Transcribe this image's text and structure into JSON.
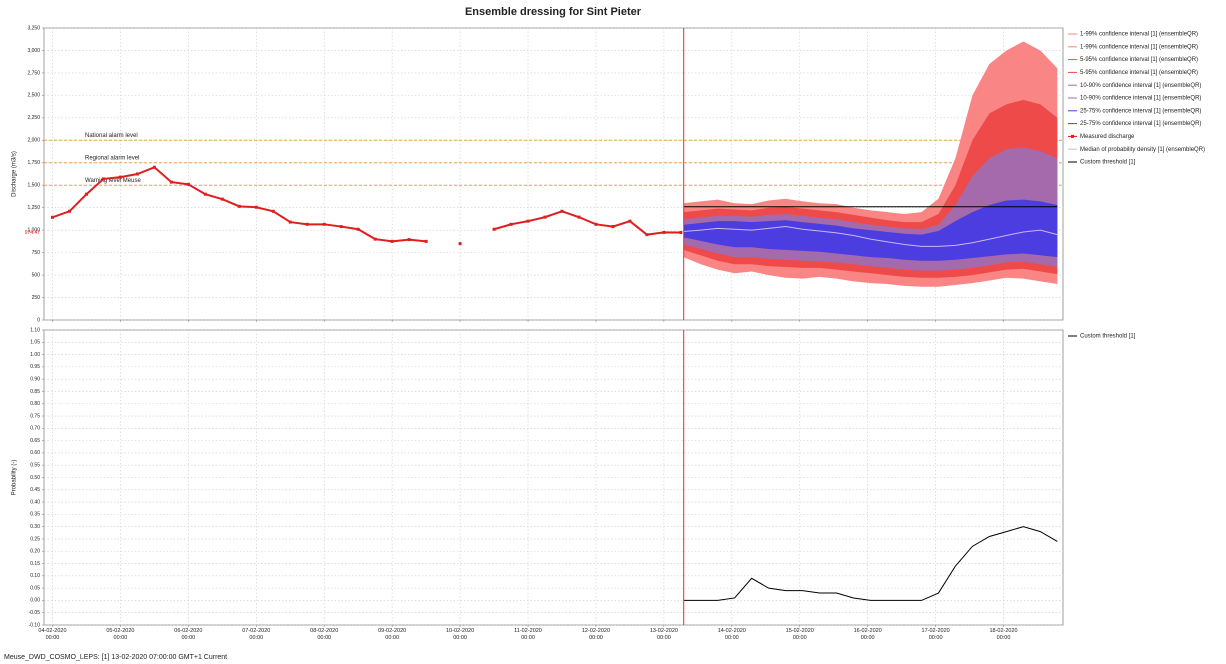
{
  "footer": "Meuse_DWD_COSMO_LEPS: [1] 13-02-2020 07:00:00 GMT+1 Current",
  "chart_data": [
    {
      "type": "line",
      "title": "Ensemble dressing for Sint Pieter",
      "ylabel": "Discharge (m3/s)",
      "xlim": [
        "03-02-2020 21:00",
        "18-02-2020 21:00"
      ],
      "ylim": [
        0,
        3250
      ],
      "yticks": [
        0,
        250,
        500,
        750,
        {
          "value": 1000,
          "label": "1,000"
        },
        {
          "value": 1250,
          "label": "1,250"
        },
        {
          "value": 1500,
          "label": "1,500"
        },
        {
          "value": 1750,
          "label": "1,750"
        },
        {
          "value": 2000,
          "label": "2,000"
        },
        {
          "value": 2250,
          "label": "2,250"
        },
        {
          "value": 2500,
          "label": "2,500"
        },
        {
          "value": 2750,
          "label": "2,750"
        },
        {
          "value": 3000,
          "label": "3,000"
        },
        {
          "value": 3250,
          "label": "3,250"
        }
      ],
      "grid": true,
      "forecast_time": "13-02-2020 07:00",
      "last_value": {
        "value": 974.47,
        "label": "974.47"
      },
      "alarm_color": "#f0a040",
      "thresholds": [
        {
          "label": "National alarm level",
          "value": 2000
        },
        {
          "label": "Regional alarm level",
          "value": 1750
        },
        {
          "label": "Warning level Meuse",
          "value": 1500
        }
      ],
      "x": [
        "13-02-2020 07:00",
        "13-02-2020 13:00",
        "13-02-2020 19:00",
        "14-02-2020 01:00",
        "14-02-2020 07:00",
        "14-02-2020 13:00",
        "14-02-2020 19:00",
        "15-02-2020 01:00",
        "15-02-2020 07:00",
        "15-02-2020 13:00",
        "15-02-2020 19:00",
        "16-02-2020 01:00",
        "16-02-2020 07:00",
        "16-02-2020 13:00",
        "16-02-2020 19:00",
        "17-02-2020 01:00",
        "17-02-2020 07:00",
        "17-02-2020 13:00",
        "17-02-2020 19:00",
        "18-02-2020 01:00",
        "18-02-2020 07:00",
        "18-02-2020 13:00",
        "18-02-2020 19:00"
      ],
      "series": [
        {
          "name": "1-99% confidence interval [1] (ensembleQR)",
          "color": "#f98585",
          "values": [
            700,
            620,
            560,
            520,
            540,
            500,
            470,
            460,
            480,
            460,
            430,
            410,
            400,
            380,
            370,
            370,
            390,
            410,
            440,
            470,
            460,
            430,
            400
          ]
        },
        {
          "name": "1-99% confidence interval [1] (ensembleQR)",
          "color": "#f98585",
          "values": [
            1300,
            1320,
            1340,
            1300,
            1290,
            1330,
            1350,
            1320,
            1300,
            1290,
            1250,
            1220,
            1200,
            1180,
            1200,
            1350,
            1800,
            2500,
            2850,
            3000,
            3100,
            3000,
            2800
          ]
        },
        {
          "name": "5-95% confidence interval [1] (ensembleQR)",
          "color": "#ee4a4a",
          "values": [
            780,
            720,
            660,
            620,
            620,
            600,
            590,
            580,
            580,
            560,
            540,
            520,
            500,
            480,
            470,
            470,
            480,
            500,
            530,
            560,
            570,
            540,
            510
          ]
        },
        {
          "name": "5-95% confidence interval [1] (ensembleQR)",
          "color": "#ee4a4a",
          "values": [
            1200,
            1220,
            1240,
            1230,
            1220,
            1250,
            1260,
            1240,
            1220,
            1200,
            1170,
            1140,
            1110,
            1090,
            1090,
            1180,
            1500,
            2000,
            2300,
            2400,
            2450,
            2400,
            2250
          ]
        },
        {
          "name": "10-90% confidence interval [1] (ensembleQR)",
          "color": "#a46aac",
          "values": [
            840,
            790,
            740,
            700,
            700,
            680,
            670,
            660,
            650,
            640,
            620,
            600,
            580,
            560,
            550,
            550,
            560,
            580,
            610,
            640,
            650,
            620,
            590
          ]
        },
        {
          "name": "10-90% confidence interval [1] (ensembleQR)",
          "color": "#a46aac",
          "values": [
            1120,
            1140,
            1160,
            1160,
            1150,
            1170,
            1180,
            1160,
            1140,
            1120,
            1090,
            1060,
            1040,
            1020,
            1010,
            1060,
            1280,
            1600,
            1800,
            1900,
            1920,
            1880,
            1800
          ]
        },
        {
          "name": "25-75% confidence interval [1] (ensembleQR)",
          "color": "#4b3de0",
          "values": [
            920,
            880,
            840,
            810,
            810,
            790,
            780,
            770,
            760,
            740,
            720,
            700,
            690,
            670,
            660,
            660,
            670,
            690,
            710,
            730,
            740,
            720,
            700
          ]
        },
        {
          "name": "25-75% confidence interval [1] (ensembleQR)",
          "color": "#4b3de0",
          "values": [
            1060,
            1080,
            1100,
            1100,
            1090,
            1100,
            1110,
            1090,
            1070,
            1050,
            1020,
            1000,
            980,
            960,
            950,
            990,
            1100,
            1200,
            1280,
            1330,
            1340,
            1320,
            1280
          ]
        },
        {
          "name": "Measured discharge",
          "color": "#e01e1e",
          "marker": "square",
          "x": [
            "04-02-2020 00:00",
            "04-02-2020 06:00",
            "04-02-2020 12:00",
            "04-02-2020 18:00",
            "05-02-2020 00:00",
            "05-02-2020 06:00",
            "05-02-2020 12:00",
            "05-02-2020 18:00",
            "06-02-2020 00:00",
            "06-02-2020 06:00",
            "06-02-2020 12:00",
            "06-02-2020 18:00",
            "07-02-2020 00:00",
            "07-02-2020 06:00",
            "07-02-2020 12:00",
            "07-02-2020 18:00",
            "08-02-2020 00:00",
            "08-02-2020 06:00",
            "08-02-2020 12:00",
            "08-02-2020 18:00",
            "09-02-2020 00:00",
            "09-02-2020 06:00",
            "09-02-2020 12:00",
            "09-02-2020 18:00",
            "10-02-2020 00:00",
            "10-02-2020 06:00",
            "10-02-2020 12:00",
            "10-02-2020 18:00",
            "11-02-2020 00:00",
            "11-02-2020 06:00",
            "11-02-2020 12:00",
            "11-02-2020 18:00",
            "12-02-2020 00:00",
            "12-02-2020 06:00",
            "12-02-2020 12:00",
            "12-02-2020 18:00",
            "13-02-2020 00:00",
            "13-02-2020 06:00"
          ],
          "values": [
            1143,
            1210,
            1400,
            1570,
            1590,
            1625,
            1700,
            1535,
            1510,
            1400,
            1345,
            1265,
            1255,
            1210,
            1090,
            1065,
            1065,
            1040,
            1010,
            900,
            875,
            895,
            875,
            null,
            850,
            null,
            1010,
            1065,
            1100,
            1145,
            1210,
            1145,
            1065,
            1040,
            1100,
            950,
            975,
            974
          ]
        },
        {
          "name": "Median of probability density [1] (ensembleQR)",
          "color": "#cdb8ee",
          "values": [
            985,
            1000,
            1020,
            1010,
            1000,
            1020,
            1040,
            1010,
            990,
            970,
            940,
            900,
            870,
            840,
            820,
            820,
            830,
            860,
            900,
            940,
            980,
            1000,
            950
          ]
        },
        {
          "name": "Custom threshold [1]",
          "color": "#000000",
          "x": [
            "13-02-2020 07:00",
            "18-02-2020 19:00"
          ],
          "values": [
            1260,
            1260
          ]
        }
      ]
    },
    {
      "type": "line",
      "ylabel": "Probability (-)",
      "xlim": [
        "03-02-2020 21:00",
        "18-02-2020 21:00"
      ],
      "xticks": [
        "04-02-2020 00:00",
        "05-02-2020 00:00",
        "06-02-2020 00:00",
        "07-02-2020 00:00",
        "08-02-2020 00:00",
        "09-02-2020 00:00",
        "10-02-2020 00:00",
        "11-02-2020 00:00",
        "12-02-2020 00:00",
        "13-02-2020 00:00",
        "14-02-2020 00:00",
        "15-02-2020 00:00",
        "16-02-2020 00:00",
        "17-02-2020 00:00",
        "18-02-2020 00:00"
      ],
      "ylim": [
        -0.1,
        1.1
      ],
      "yticks": [
        {
          "value": -0.1,
          "label": "-0.10"
        },
        -0.05,
        {
          "value": 0,
          "label": "0.00"
        },
        0.05,
        {
          "value": 0.1,
          "label": "0.10"
        },
        0.15,
        {
          "value": 0.2,
          "label": "0.20"
        },
        0.25,
        {
          "value": 0.3,
          "label": "0.30"
        },
        0.35,
        {
          "value": 0.4,
          "label": "0.40"
        },
        0.45,
        {
          "value": 0.5,
          "label": "0.50"
        },
        0.55,
        {
          "value": 0.6,
          "label": "0.60"
        },
        0.65,
        {
          "value": 0.7,
          "label": "0.70"
        },
        0.75,
        {
          "value": 0.8,
          "label": "0.80"
        },
        0.85,
        {
          "value": 0.9,
          "label": "0.90"
        },
        0.95,
        {
          "value": 1,
          "label": "1.00"
        },
        1.05,
        {
          "value": 1.1,
          "label": "1.10"
        }
      ],
      "grid": true,
      "forecast_time": "13-02-2020 07:00",
      "x": [
        "13-02-2020 07:00",
        "13-02-2020 13:00",
        "13-02-2020 19:00",
        "14-02-2020 01:00",
        "14-02-2020 07:00",
        "14-02-2020 13:00",
        "14-02-2020 19:00",
        "15-02-2020 01:00",
        "15-02-2020 07:00",
        "15-02-2020 13:00",
        "15-02-2020 19:00",
        "16-02-2020 01:00",
        "16-02-2020 07:00",
        "16-02-2020 13:00",
        "16-02-2020 19:00",
        "17-02-2020 01:00",
        "17-02-2020 07:00",
        "17-02-2020 13:00",
        "17-02-2020 19:00",
        "18-02-2020 01:00",
        "18-02-2020 07:00",
        "18-02-2020 13:00",
        "18-02-2020 19:00"
      ],
      "series": [
        {
          "name": "Custom threshold [1]",
          "color": "#000000",
          "values": [
            0,
            0,
            0,
            0.01,
            0.09,
            0.05,
            0.04,
            0.04,
            0.03,
            0.03,
            0.01,
            0,
            0,
            0,
            0,
            0.03,
            0.14,
            0.22,
            0.26,
            0.28,
            0.3,
            0.28,
            0.24
          ]
        }
      ]
    }
  ]
}
